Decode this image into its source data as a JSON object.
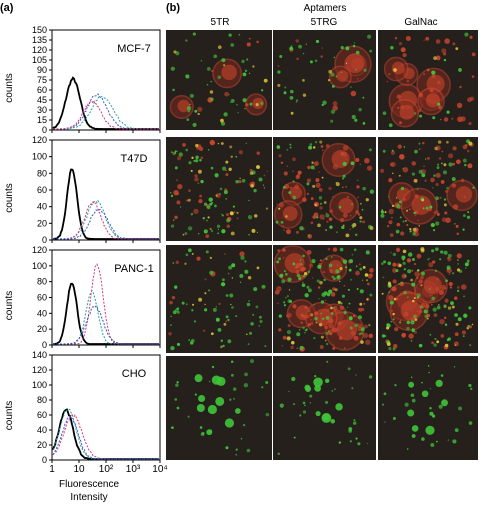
{
  "panel_a": {
    "label": "(a)",
    "x_axis_label_line1": "Fluorescence",
    "x_axis_label_line2": "Intensity",
    "x_ticks": [
      "1",
      "10",
      "10²",
      "10³",
      "10⁴"
    ],
    "y_label": "counts",
    "histograms": [
      {
        "cell_line": "MCF-7",
        "y_ticks": [
          "0",
          "15",
          "30",
          "45",
          "60",
          "75",
          "90",
          "105",
          "120",
          "135",
          "150"
        ]
      },
      {
        "cell_line": "T47D",
        "y_ticks": [
          "0",
          "20",
          "40",
          "60",
          "80",
          "100",
          "120"
        ]
      },
      {
        "cell_line": "PANC-1",
        "y_ticks": [
          "0",
          "20",
          "40",
          "60",
          "80",
          "100",
          "120"
        ]
      },
      {
        "cell_line": "CHO",
        "y_ticks": [
          "0",
          "20",
          "40",
          "60",
          "80",
          "100",
          "120",
          "140"
        ]
      }
    ],
    "trace_colors": {
      "control": "#000000",
      "teal": "#2aa198",
      "magenta": "#d33682",
      "blue": "#3a55c8"
    }
  },
  "panel_b": {
    "label": "(b)",
    "title": "Aptamers",
    "columns": [
      "5TR",
      "5TRG",
      "GalNac"
    ],
    "image_bg": "#26201d",
    "stain_colors": {
      "red": "#c8442c",
      "green": "#3fc43a",
      "yellow": "#e0c43a"
    }
  }
}
